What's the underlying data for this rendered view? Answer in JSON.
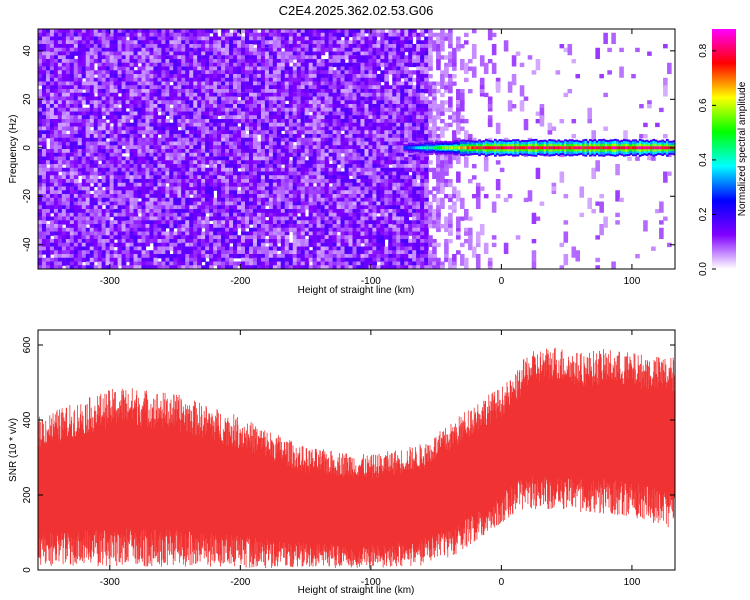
{
  "title": "C2E4.2025.362.02.53.G06",
  "chart_data": [
    {
      "type": "heatmap",
      "xlabel": "Height of straight line (km)",
      "ylabel": "Frequency (Hz)",
      "xlim": [
        -355,
        133
      ],
      "ylim": [
        -50,
        49
      ],
      "xticks": [
        -300,
        -200,
        -100,
        0,
        100
      ],
      "yticks": [
        -40,
        -20,
        0,
        20,
        40
      ],
      "grid": false,
      "noise_region_x": [
        -355,
        -55
      ],
      "noise_fade_x": [
        -55,
        133
      ],
      "signal": {
        "frequency": 0,
        "x_start": -75,
        "x_end": 133,
        "peak_amplitude": 0.85
      },
      "colorbar": {
        "label": "Normalized spectral amplitude",
        "range": [
          0.0,
          0.88
        ],
        "ticks": [
          0.0,
          0.2,
          0.4,
          0.6,
          0.8
        ],
        "colors": [
          "#ffffff",
          "#8000ff",
          "#0000ff",
          "#00ffff",
          "#00ff00",
          "#ffff00",
          "#ff0000",
          "#ff00ff"
        ]
      }
    },
    {
      "type": "area",
      "xlabel": "Height of straight line (km)",
      "ylabel": "SNR (10 * v/v)",
      "xlim": [
        -355,
        133
      ],
      "ylim": [
        0,
        640
      ],
      "xticks": [
        -300,
        -200,
        -100,
        0,
        100
      ],
      "yticks": [
        0,
        200,
        400,
        600
      ],
      "grid": false,
      "color": "#f03232",
      "envelope": {
        "x": [
          -355,
          -300,
          -290,
          -250,
          -200,
          -150,
          -100,
          -60,
          -40,
          -20,
          0,
          10,
          20,
          40,
          60,
          80,
          100,
          120,
          133
        ],
        "upper": [
          400,
          470,
          480,
          460,
          400,
          320,
          300,
          330,
          380,
          440,
          480,
          510,
          570,
          590,
          570,
          580,
          570,
          560,
          560
        ],
        "lower": [
          20,
          20,
          20,
          20,
          15,
          10,
          10,
          20,
          40,
          80,
          130,
          160,
          170,
          170,
          160,
          160,
          150,
          130,
          120
        ]
      }
    }
  ]
}
